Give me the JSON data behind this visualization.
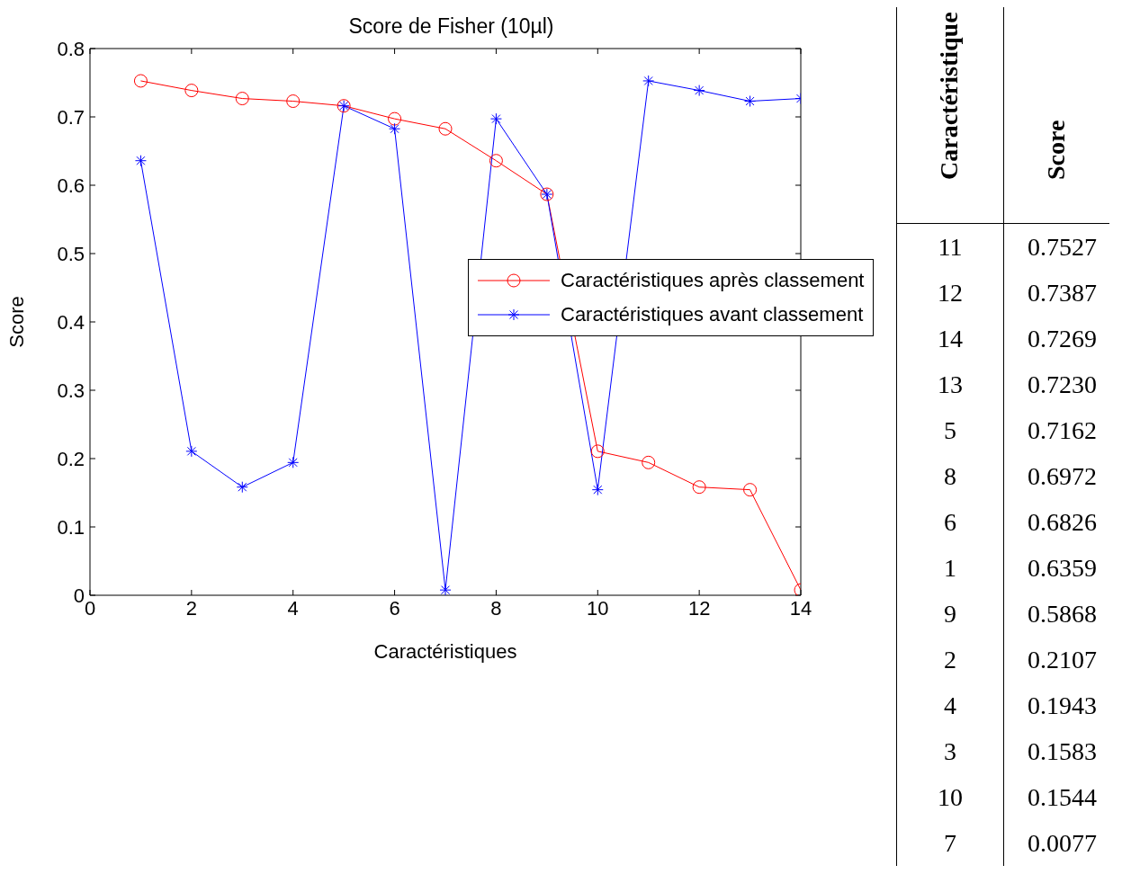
{
  "chart_data": [
    {
      "type": "line",
      "title": "Score de Fisher (10µl)",
      "xlabel": "Caractéristiques",
      "ylabel": "Score",
      "x": [
        1,
        2,
        3,
        4,
        5,
        6,
        7,
        8,
        9,
        10,
        11,
        12,
        13,
        14
      ],
      "xlim": [
        0,
        14
      ],
      "xticks": [
        0,
        2,
        4,
        6,
        8,
        10,
        12,
        14
      ],
      "ylim": [
        0,
        0.8
      ],
      "yticks": [
        0,
        0.1,
        0.2,
        0.3,
        0.4,
        0.5,
        0.6,
        0.7,
        0.8
      ],
      "grid": false,
      "legend": "right",
      "line_style": "solid",
      "series": [
        {
          "name": "Caractéristiques après classement",
          "color": "#ff0000",
          "marker": "circle",
          "values": [
            0.7527,
            0.7387,
            0.7269,
            0.723,
            0.7162,
            0.6972,
            0.6826,
            0.6359,
            0.5868,
            0.2107,
            0.1943,
            0.1583,
            0.1544,
            0.0077
          ]
        },
        {
          "name": "Caractéristiques avant classement",
          "color": "#0000ff",
          "marker": "cross",
          "values": [
            0.6359,
            0.2107,
            0.1583,
            0.1943,
            0.7162,
            0.6826,
            0.0077,
            0.6972,
            0.5868,
            0.1544,
            0.7527,
            0.7387,
            0.723,
            0.7269
          ]
        }
      ]
    },
    {
      "type": "other",
      "xlabel": "Caractéristique",
      "ylabel": "Score",
      "categories": [
        "11",
        "12",
        "14",
        "13",
        "5",
        "8",
        "6",
        "1",
        "9",
        "2",
        "4",
        "3",
        "10",
        "7"
      ],
      "value_labels": [
        "0.7527",
        "0.7387",
        "0.7269",
        "0.7230",
        "0.7162",
        "0.6972",
        "0.6826",
        "0.6359",
        "0.5868",
        "0.2107",
        "0.1943",
        "0.1583",
        "0.1544",
        "0.0077"
      ]
    }
  ]
}
